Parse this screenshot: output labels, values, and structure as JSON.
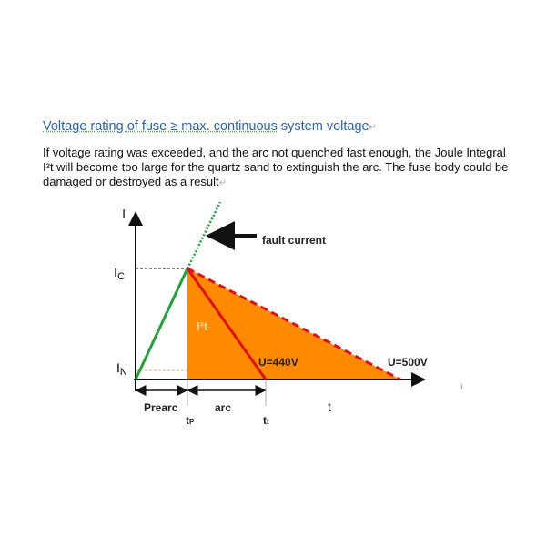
{
  "heading": {
    "part1": "Voltage rating of fuse ≥ max. continuous",
    "part2": " system voltage",
    "mark": "↵"
  },
  "paragraph": {
    "text": "If voltage rating was exceeded, and the arc not quenched fast enough, the Joule Integral I²t will become too large for the quartz sand to extinguish the arc. The fuse body could be damaged or destroyed as a result",
    "mark": "↵"
  },
  "diagram": {
    "y_axis_label": "I",
    "x_axis_label": "t",
    "ic_label": "I",
    "ic_sub": "C",
    "in_label": "I",
    "in_sub": "N",
    "fault_label": "fault current",
    "i2t_label": "I²t",
    "u440_label": "U=440V",
    "u500_label": "U=500V",
    "prearc_label": "Prearc",
    "arc_label": "arc",
    "tp_label": "t",
    "tp_sub": "P",
    "tt_label": "t",
    "tt_sub": "t",
    "stray_mark": "I",
    "colors": {
      "fill": "#ff8a00",
      "green": "#22a03a",
      "red": "#e0101a",
      "text_link": "#2a63a8"
    }
  }
}
